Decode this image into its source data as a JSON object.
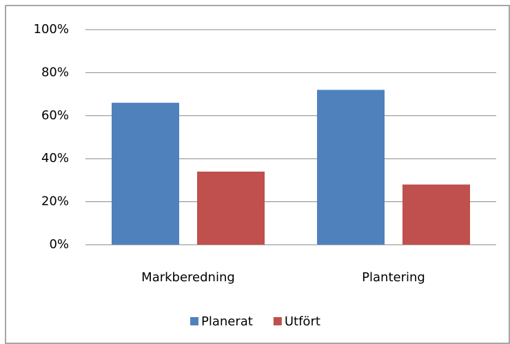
{
  "chart_data": {
    "type": "bar",
    "categories": [
      "Markberedning",
      "Plantering"
    ],
    "series": [
      {
        "name": "Planerat",
        "color": "#4f81bd",
        "values": [
          66,
          72
        ]
      },
      {
        "name": "Utfört",
        "color": "#c0504d",
        "values": [
          34,
          28
        ]
      }
    ],
    "ylim": [
      0,
      100
    ],
    "yticks": [
      {
        "value": 0,
        "label": "0%"
      },
      {
        "value": 20,
        "label": "20%"
      },
      {
        "value": 40,
        "label": "40%"
      },
      {
        "value": 60,
        "label": "60%"
      },
      {
        "value": 80,
        "label": "80%"
      },
      {
        "value": 100,
        "label": "100%"
      }
    ],
    "grid": true,
    "legend": "bottom"
  }
}
